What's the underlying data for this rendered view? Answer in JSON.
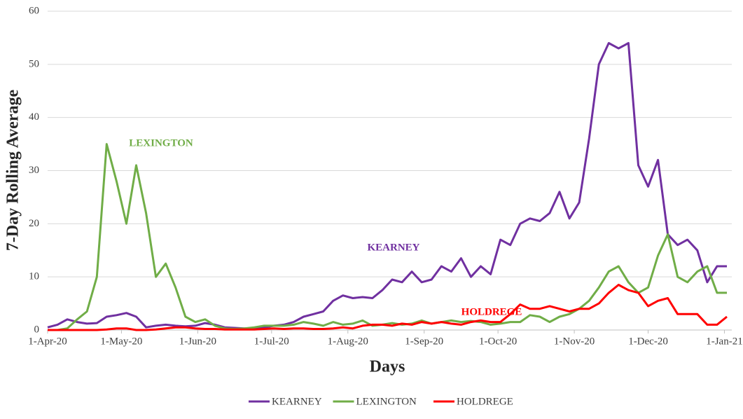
{
  "chart_data": {
    "type": "line",
    "y_label": "7-Day Rolling Average",
    "x_label": "Days",
    "x": [
      "2020-04-01",
      "2020-04-05",
      "2020-04-09",
      "2020-04-13",
      "2020-04-17",
      "2020-04-21",
      "2020-04-25",
      "2020-04-29",
      "2020-05-03",
      "2020-05-07",
      "2020-05-11",
      "2020-05-15",
      "2020-05-19",
      "2020-05-23",
      "2020-05-27",
      "2020-05-31",
      "2020-06-04",
      "2020-06-08",
      "2020-06-12",
      "2020-06-16",
      "2020-06-20",
      "2020-06-24",
      "2020-06-28",
      "2020-07-02",
      "2020-07-06",
      "2020-07-10",
      "2020-07-14",
      "2020-07-18",
      "2020-07-22",
      "2020-07-26",
      "2020-07-30",
      "2020-08-03",
      "2020-08-07",
      "2020-08-11",
      "2020-08-15",
      "2020-08-19",
      "2020-08-23",
      "2020-08-27",
      "2020-08-31",
      "2020-09-04",
      "2020-09-08",
      "2020-09-12",
      "2020-09-16",
      "2020-09-20",
      "2020-09-24",
      "2020-09-28",
      "2020-10-02",
      "2020-10-06",
      "2020-10-10",
      "2020-10-14",
      "2020-10-18",
      "2020-10-22",
      "2020-10-26",
      "2020-10-30",
      "2020-11-03",
      "2020-11-07",
      "2020-11-11",
      "2020-11-15",
      "2020-11-19",
      "2020-11-23",
      "2020-11-27",
      "2020-12-01",
      "2020-12-05",
      "2020-12-09",
      "2020-12-13",
      "2020-12-17",
      "2020-12-21",
      "2020-12-25",
      "2020-12-29",
      "2021-01-02"
    ],
    "series": [
      {
        "name": "KEARNEY",
        "color": "#7030a0",
        "values": [
          0.5,
          1,
          2,
          1.5,
          1.2,
          1.3,
          2.5,
          2.8,
          3.2,
          2.5,
          0.5,
          0.8,
          1,
          0.8,
          0.7,
          0.8,
          1.3,
          1,
          0.5,
          0.4,
          0.3,
          0.3,
          0.5,
          0.8,
          1,
          1.5,
          2.5,
          3,
          3.5,
          5.5,
          6.5,
          6,
          6.2,
          6,
          7.5,
          9.5,
          9,
          11,
          9,
          9.5,
          12,
          11,
          13.5,
          10,
          12,
          10.5,
          17,
          16,
          20,
          21,
          20.5,
          22,
          26,
          21,
          24,
          36,
          50,
          54,
          53,
          54,
          31,
          27,
          32,
          18,
          16,
          17,
          15,
          9,
          12,
          12
        ]
      },
      {
        "name": "LEXINGTON",
        "color": "#70ad47",
        "values": [
          0,
          0,
          0.3,
          2,
          3.5,
          10,
          35,
          28,
          20,
          31,
          22,
          10,
          12.5,
          8,
          2.5,
          1.5,
          2,
          0.8,
          0.3,
          0.2,
          0.3,
          0.5,
          0.8,
          0.8,
          0.8,
          1,
          1.5,
          1.2,
          0.8,
          1.5,
          1,
          1.2,
          1.8,
          0.8,
          1,
          1.3,
          1,
          1.2,
          1.8,
          1.2,
          1.5,
          1.8,
          1.5,
          1.7,
          1.5,
          1,
          1.2,
          1.5,
          1.5,
          2.8,
          2.5,
          1.5,
          2.5,
          3,
          4,
          5.5,
          8,
          11,
          12,
          9,
          7,
          8,
          14,
          18,
          10,
          9,
          11,
          12,
          7,
          7
        ]
      },
      {
        "name": "HOLDREGE",
        "color": "#ff0000",
        "values": [
          0,
          0,
          0,
          0,
          0,
          0,
          0.1,
          0.3,
          0.3,
          0,
          0,
          0.1,
          0.3,
          0.5,
          0.5,
          0.3,
          0.2,
          0.2,
          0.1,
          0.1,
          0.1,
          0.1,
          0.2,
          0.3,
          0.2,
          0.3,
          0.3,
          0.2,
          0.2,
          0.3,
          0.5,
          0.3,
          0.8,
          1,
          1,
          0.8,
          1.2,
          1,
          1.5,
          1.2,
          1.5,
          1.2,
          1,
          1.5,
          1.8,
          1.5,
          1.5,
          3,
          4.8,
          4,
          4,
          4.5,
          4,
          3.5,
          4,
          4,
          5,
          7,
          8.5,
          7.5,
          7,
          4.5,
          5.5,
          6,
          3,
          3,
          3,
          1,
          1,
          2.5
        ]
      }
    ],
    "annotations": [
      "LEXINGTON",
      "KEARNEY",
      "HOLDREGE"
    ],
    "xlim": [
      "2020-04-01",
      "2021-01-04"
    ],
    "xticks": [
      {
        "value": "2020-04-01",
        "label": "1-Apr-20"
      },
      {
        "value": "2020-05-01",
        "label": "1-May-20"
      },
      {
        "value": "2020-06-01",
        "label": "1-Jun-20"
      },
      {
        "value": "2020-07-01",
        "label": "1-Jul-20"
      },
      {
        "value": "2020-08-01",
        "label": "1-Aug-20"
      },
      {
        "value": "2020-09-01",
        "label": "1-Sep-20"
      },
      {
        "value": "2020-10-01",
        "label": "1-Oct-20"
      },
      {
        "value": "2020-11-01",
        "label": "1-Nov-20"
      },
      {
        "value": "2020-12-01",
        "label": "1-Dec-20"
      },
      {
        "value": "2021-01-01",
        "label": "1-Jan-21"
      }
    ],
    "ylim": [
      0,
      60
    ],
    "yticks": [
      0,
      10,
      20,
      30,
      40,
      50,
      60
    ],
    "grid": true,
    "legend": "bottom"
  }
}
